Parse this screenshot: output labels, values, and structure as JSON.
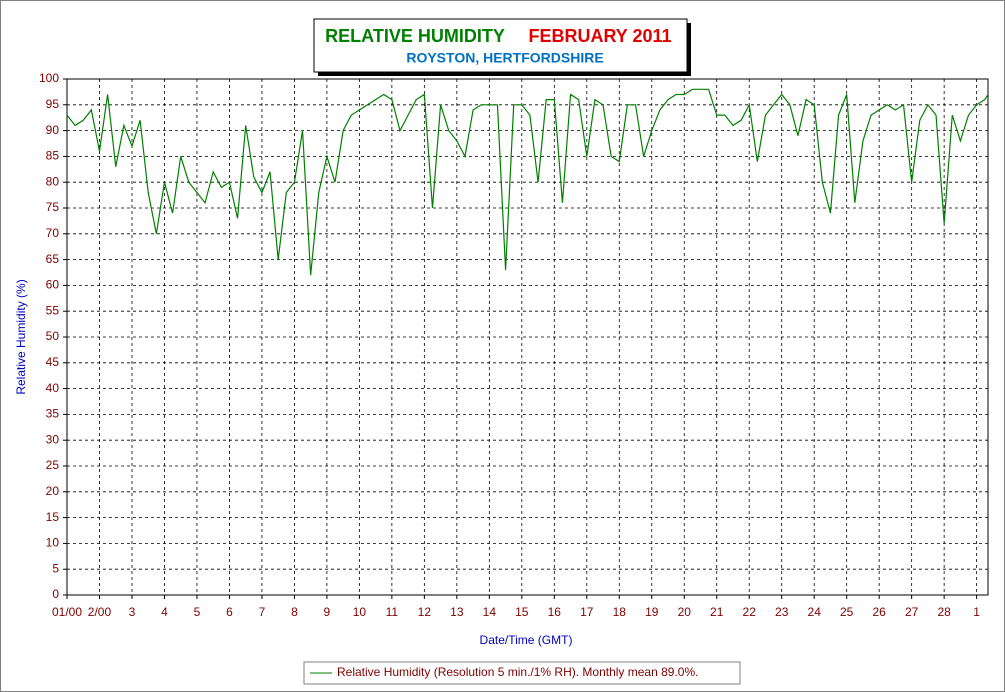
{
  "chart_data": {
    "type": "line",
    "title": "RELATIVE HUMIDITY",
    "title_month": "FEBRUARY 2011",
    "subtitle": "ROYSTON, HERTFORDSHIRE",
    "y_label": "Relative Humidity (%)",
    "x_label": "Date/Time (GMT)",
    "x": [
      0,
      0.25,
      0.5,
      0.75,
      1,
      1.25,
      1.5,
      1.75,
      2,
      2.25,
      2.5,
      2.75,
      3,
      3.25,
      3.5,
      3.75,
      4,
      4.25,
      4.5,
      4.75,
      5,
      5.25,
      5.5,
      5.75,
      6,
      6.25,
      6.5,
      6.75,
      7,
      7.25,
      7.5,
      7.75,
      8,
      8.25,
      8.5,
      8.75,
      9,
      9.25,
      9.5,
      9.75,
      10,
      10.25,
      10.5,
      10.75,
      11,
      11.25,
      11.5,
      11.75,
      12,
      12.25,
      12.5,
      12.75,
      13,
      13.25,
      13.5,
      13.75,
      14,
      14.25,
      14.5,
      14.75,
      15,
      15.25,
      15.5,
      15.75,
      16,
      16.25,
      16.5,
      16.75,
      17,
      17.25,
      17.5,
      17.75,
      18,
      18.25,
      18.5,
      18.75,
      19,
      19.25,
      19.5,
      19.75,
      20,
      20.25,
      20.5,
      20.75,
      21,
      21.25,
      21.5,
      21.75,
      22,
      22.25,
      22.5,
      22.75,
      23,
      23.25,
      23.5,
      23.75,
      24,
      24.25,
      24.5,
      24.75,
      25,
      25.25,
      25.5,
      25.75,
      26,
      26.25,
      26.5,
      26.75,
      27,
      27.25,
      27.5,
      27.75,
      28,
      28.25,
      28.35
    ],
    "series": [
      {
        "name": "Relative Humidity (Resolution 5 min./1% RH). Monthly mean 89.0%.",
        "color": "#008000",
        "values": [
          93,
          91,
          92,
          94,
          86,
          97,
          83,
          91,
          87,
          92,
          78,
          70,
          80,
          74,
          85,
          80,
          78,
          76,
          82,
          79,
          80,
          73,
          91,
          81,
          78,
          82,
          65,
          78,
          80,
          90,
          62,
          78,
          85,
          80,
          90,
          93,
          94,
          95,
          96,
          97,
          96,
          90,
          93,
          96,
          97,
          75,
          95,
          90,
          88,
          85,
          94,
          95,
          95,
          95,
          63,
          95,
          95,
          93,
          80,
          96,
          96,
          76,
          97,
          96,
          85,
          96,
          95,
          85,
          84,
          95,
          95,
          85,
          90,
          94,
          96,
          97,
          97,
          98,
          98,
          98,
          93,
          93,
          91,
          92,
          95,
          84,
          93,
          95,
          97,
          95,
          89,
          96,
          95,
          80,
          74,
          93,
          97,
          76,
          88,
          93,
          94,
          95,
          94,
          95,
          80,
          92,
          95,
          93,
          72,
          93,
          88,
          93,
          95,
          96,
          97
        ]
      }
    ],
    "xlim": [
      0,
      28.35
    ],
    "ylim": [
      0,
      100
    ],
    "xticks": [
      {
        "value": 0,
        "label": "01/00"
      },
      {
        "value": 1,
        "label": "2/00"
      },
      {
        "value": 2,
        "label": "3"
      },
      {
        "value": 3,
        "label": "4"
      },
      {
        "value": 4,
        "label": "5"
      },
      {
        "value": 5,
        "label": "6"
      },
      {
        "value": 6,
        "label": "7"
      },
      {
        "value": 7,
        "label": "8"
      },
      {
        "value": 8,
        "label": "9"
      },
      {
        "value": 9,
        "label": "10"
      },
      {
        "value": 10,
        "label": "11"
      },
      {
        "value": 11,
        "label": "12"
      },
      {
        "value": 12,
        "label": "13"
      },
      {
        "value": 13,
        "label": "14"
      },
      {
        "value": 14,
        "label": "15"
      },
      {
        "value": 15,
        "label": "16"
      },
      {
        "value": 16,
        "label": "17"
      },
      {
        "value": 17,
        "label": "18"
      },
      {
        "value": 18,
        "label": "19"
      },
      {
        "value": 19,
        "label": "20"
      },
      {
        "value": 20,
        "label": "21"
      },
      {
        "value": 21,
        "label": "22"
      },
      {
        "value": 22,
        "label": "23"
      },
      {
        "value": 23,
        "label": "24"
      },
      {
        "value": 24,
        "label": "25"
      },
      {
        "value": 25,
        "label": "26"
      },
      {
        "value": 26,
        "label": "27"
      },
      {
        "value": 27,
        "label": "28"
      },
      {
        "value": 28,
        "label": "1"
      }
    ],
    "yticks": [
      0,
      5,
      10,
      15,
      20,
      25,
      30,
      35,
      40,
      45,
      50,
      55,
      60,
      65,
      70,
      75,
      80,
      85,
      90,
      95,
      100
    ],
    "grid": true
  }
}
